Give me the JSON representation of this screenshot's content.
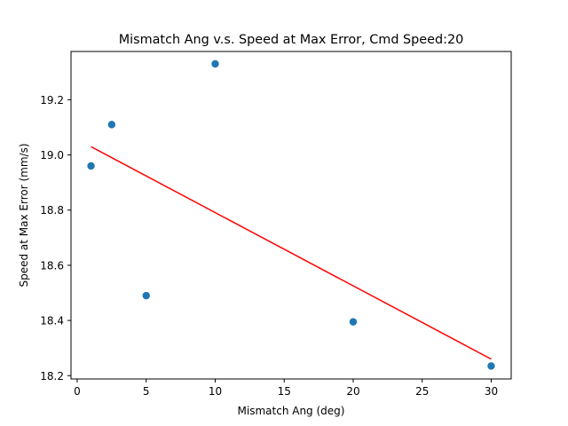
{
  "chart_data": {
    "type": "scatter",
    "title": "Mismatch Ang v.s. Speed at Max Error, Cmd Speed:20",
    "xlabel": "Mismatch Ang (deg)",
    "ylabel": "Speed at Max Error (mm/s)",
    "xlim": [
      -0.45,
      31.45
    ],
    "ylim": [
      18.188,
      19.375
    ],
    "x_ticks": [
      0,
      5,
      10,
      15,
      20,
      25,
      30
    ],
    "x_tick_labels": [
      "0",
      "5",
      "10",
      "15",
      "20",
      "25",
      "30"
    ],
    "y_ticks": [
      18.2,
      18.4,
      18.6,
      18.8,
      19.0,
      19.2
    ],
    "y_tick_labels": [
      "18.2",
      "18.4",
      "18.6",
      "18.8",
      "19.0",
      "19.2"
    ],
    "grid": false,
    "series": [
      {
        "kind": "scatter",
        "color": "#1f77b4",
        "points": [
          {
            "x": 1,
            "y": 18.96
          },
          {
            "x": 2.5,
            "y": 19.11
          },
          {
            "x": 5,
            "y": 18.49
          },
          {
            "x": 10,
            "y": 19.33
          },
          {
            "x": 20,
            "y": 18.395
          },
          {
            "x": 30,
            "y": 18.235
          }
        ]
      },
      {
        "kind": "line",
        "color": "#ff0000",
        "points": [
          {
            "x": 1,
            "y": 19.03
          },
          {
            "x": 30,
            "y": 18.26
          }
        ]
      }
    ]
  }
}
